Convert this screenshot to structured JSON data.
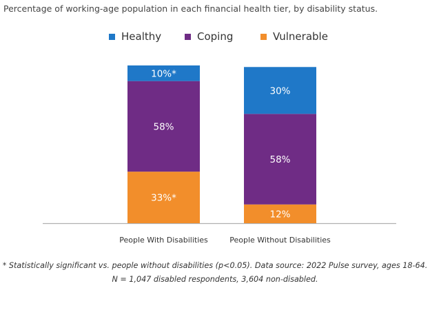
{
  "chart_data": {
    "type": "bar",
    "stacked": true,
    "title": "Percentage of working-age population in each financial health tier, by disability status.",
    "categories": [
      "People With Disabilities",
      "People Without Disabilities"
    ],
    "series": [
      {
        "name": "Vulnerable",
        "color": "#f28e2b",
        "values": [
          33,
          12
        ],
        "labels": [
          "33%*",
          "12%"
        ]
      },
      {
        "name": "Coping",
        "color": "#6f2c85",
        "values": [
          58,
          58
        ],
        "labels": [
          "58%",
          "58%"
        ]
      },
      {
        "name": "Healthy",
        "color": "#1f78c8",
        "values": [
          10,
          30
        ],
        "labels": [
          "10%*",
          "30%"
        ]
      }
    ],
    "legend_order": [
      "Healthy",
      "Coping",
      "Vulnerable"
    ],
    "legend_position": "top-center",
    "ylim": [
      0,
      101
    ],
    "xlabel": "",
    "ylabel": "",
    "grid": false
  },
  "footnote": {
    "line1": "* Statistically significant vs. people without disabilities (p<0.05). Data source: 2022 Pulse survey, ages 18-64.",
    "line2": "N = 1,047 disabled respondents, 3,604 non-disabled."
  }
}
